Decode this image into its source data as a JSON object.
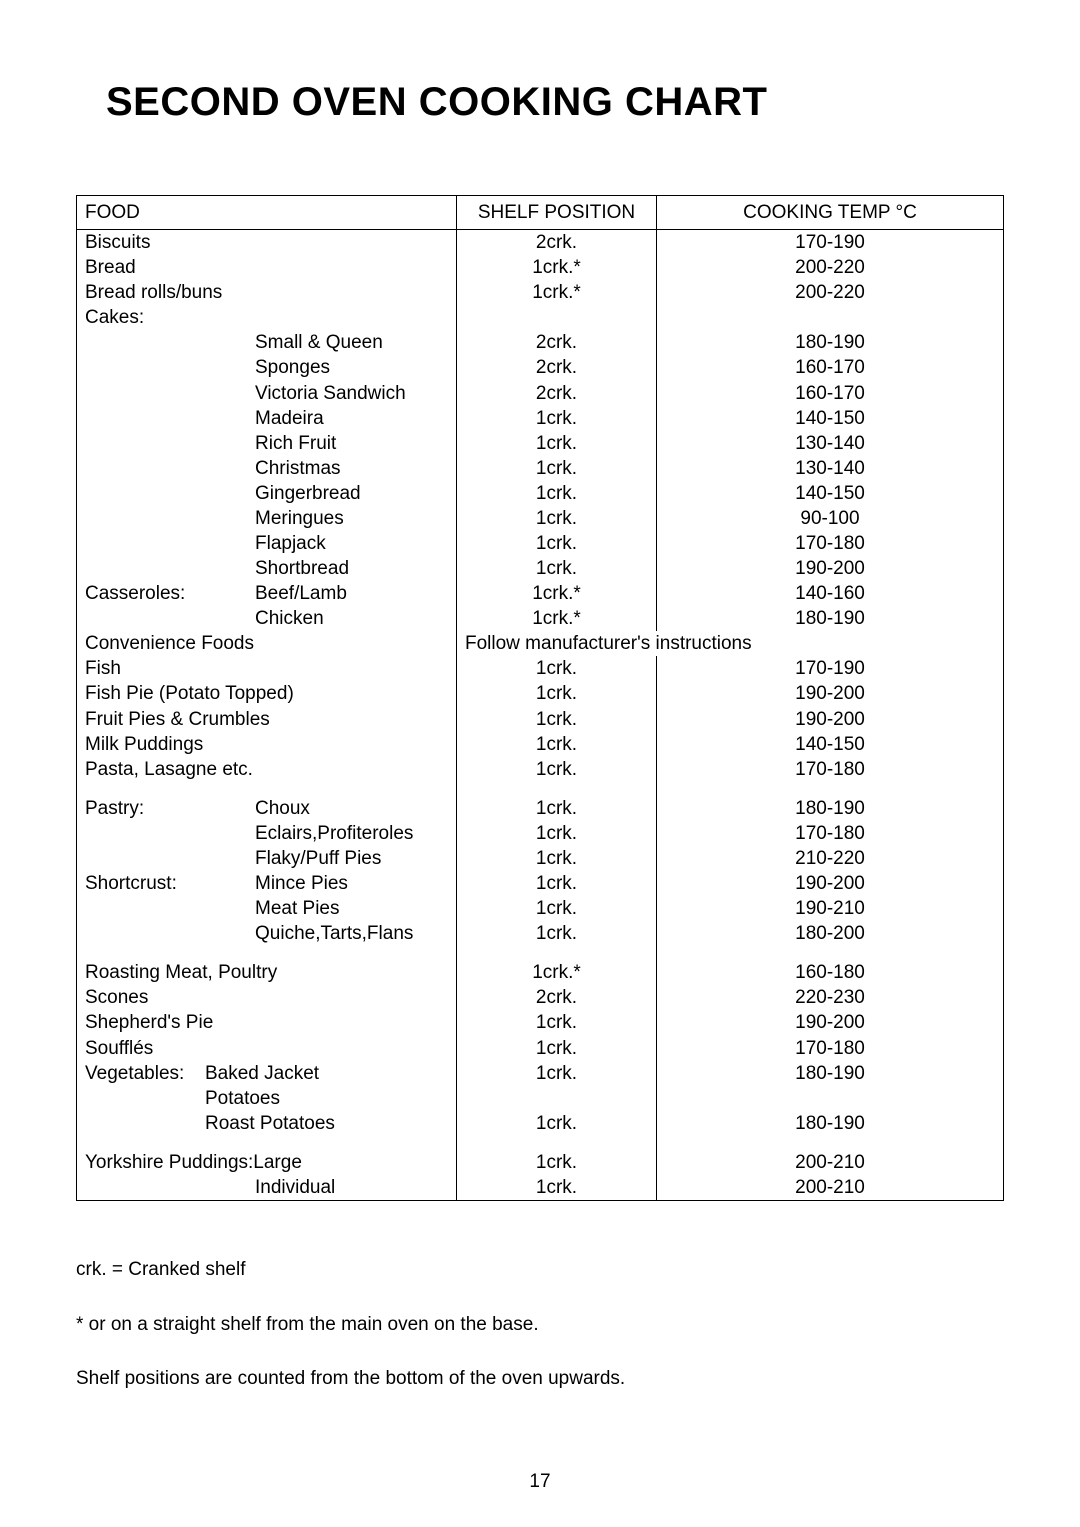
{
  "title": "SECOND OVEN COOKING CHART",
  "headers": {
    "food": "FOOD",
    "shelf": "SHELF POSITION",
    "temp": "COOKING TEMP °C"
  },
  "rows": [
    {
      "food": "Biscuits",
      "shelf": "2crk.",
      "temp": "170-190"
    },
    {
      "food": "Bread",
      "shelf": "1crk.*",
      "temp": "200-220"
    },
    {
      "food": "Bread rolls/buns",
      "shelf": "1crk.*",
      "temp": "200-220"
    },
    {
      "food": "Cakes:",
      "shelf": "",
      "temp": ""
    },
    {
      "cat": "",
      "sub": "Small & Queen",
      "shelf": "2crk.",
      "temp": "180-190"
    },
    {
      "cat": "",
      "sub": "Sponges",
      "shelf": "2crk.",
      "temp": "160-170"
    },
    {
      "cat": "",
      "sub": "Victoria Sandwich",
      "shelf": "2crk.",
      "temp": "160-170"
    },
    {
      "cat": "",
      "sub": "Madeira",
      "shelf": "1crk.",
      "temp": "140-150"
    },
    {
      "cat": "",
      "sub": "Rich Fruit",
      "shelf": "1crk.",
      "temp": "130-140"
    },
    {
      "cat": "",
      "sub": "Christmas",
      "shelf": "1crk.",
      "temp": "130-140"
    },
    {
      "cat": "",
      "sub": "Gingerbread",
      "shelf": "1crk.",
      "temp": "140-150"
    },
    {
      "cat": "",
      "sub": "Meringues",
      "shelf": "1crk.",
      "temp": "90-100"
    },
    {
      "cat": "",
      "sub": "Flapjack",
      "shelf": "1crk.",
      "temp": "170-180"
    },
    {
      "cat": "",
      "sub": "Shortbread",
      "shelf": "1crk.",
      "temp": "190-200"
    },
    {
      "cat": "Casseroles:",
      "sub": "Beef/Lamb",
      "shelf": "1crk.*",
      "temp": "140-160"
    },
    {
      "cat": "",
      "sub": "Chicken",
      "shelf": "1crk.*",
      "temp": "180-190"
    },
    {
      "food": "Convenience Foods",
      "merge": "Follow manufacturer's instructions"
    },
    {
      "food": "Fish",
      "shelf": "1crk.",
      "temp": "170-190"
    },
    {
      "food": "Fish Pie (Potato Topped)",
      "shelf": "1crk.",
      "temp": "190-200"
    },
    {
      "food": "Fruit Pies & Crumbles",
      "shelf": "1crk.",
      "temp": "190-200"
    },
    {
      "food": "Milk Puddings",
      "shelf": "1crk.",
      "temp": "140-150"
    },
    {
      "food": "Pasta, Lasagne etc.",
      "shelf": "1crk.",
      "temp": "170-180"
    },
    {
      "spacer": true
    },
    {
      "cat": "Pastry:",
      "sub": "Choux",
      "shelf": "1crk.",
      "temp": "180-190"
    },
    {
      "cat": "",
      "sub": "Eclairs,Profiteroles",
      "shelf": "1crk.",
      "temp": "170-180"
    },
    {
      "cat": "",
      "sub": "Flaky/Puff Pies",
      "shelf": "1crk.",
      "temp": "210-220"
    },
    {
      "cat": "Shortcrust:",
      "sub": "Mince Pies",
      "shelf": "1crk.",
      "temp": "190-200"
    },
    {
      "cat": "",
      "sub": "Meat Pies",
      "shelf": "1crk.",
      "temp": "190-210"
    },
    {
      "cat": "",
      "sub": "Quiche,Tarts,Flans",
      "shelf": "1crk.",
      "temp": "180-200"
    },
    {
      "spacer": true
    },
    {
      "food": "Roasting Meat, Poultry",
      "shelf": "1crk.*",
      "temp": "160-180"
    },
    {
      "food": "Scones",
      "shelf": "2crk.",
      "temp": "220-230"
    },
    {
      "food": "Shepherd's Pie",
      "shelf": "1crk.",
      "temp": "190-200"
    },
    {
      "food": "Soufflés",
      "shelf": "1crk.",
      "temp": "170-180"
    },
    {
      "catNarrow": "Vegetables:",
      "sub": "Baked Jacket",
      "shelf": "1crk.",
      "temp": "180-190"
    },
    {
      "catNarrow": "",
      "sub": "Potatoes",
      "shelf": "",
      "temp": ""
    },
    {
      "catNarrow": "",
      "sub": "Roast Potatoes",
      "shelf": "1crk.",
      "temp": "180-190"
    },
    {
      "spacer": true
    },
    {
      "food": "Yorkshire Puddings:Large",
      "shelf": "1crk.",
      "temp": "200-210"
    },
    {
      "cat": "",
      "sub": "Individual",
      "shelf": "1crk.",
      "temp": "200-210"
    }
  ],
  "notes": [
    "crk. = Cranked shelf",
    "* or on a straight shelf from the main oven on the base.",
    "Shelf positions are counted from the bottom of the oven upwards."
  ],
  "pageNumber": "17"
}
